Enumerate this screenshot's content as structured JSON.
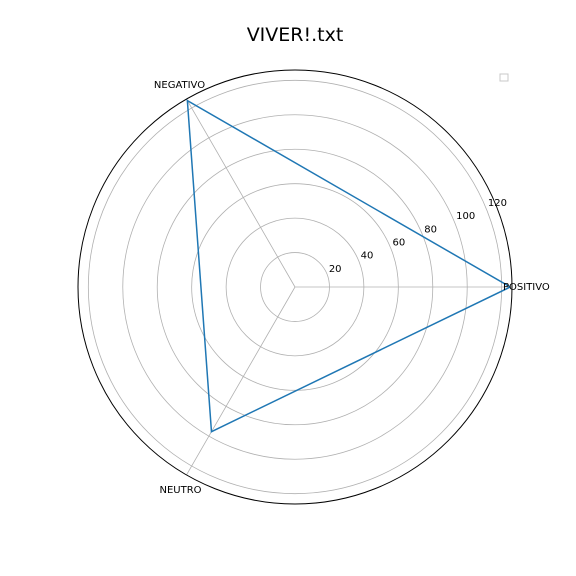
{
  "chart_data": {
    "type": "radar",
    "title": "VIVER!.txt",
    "categories": [
      "POSITIVO",
      "NEGATIVO",
      "NEUTRO"
    ],
    "series": [
      {
        "values": [
          125,
          125,
          97
        ]
      }
    ],
    "radial_ticks": [
      20,
      40,
      60,
      80,
      100,
      120
    ],
    "rlim": [
      0,
      126
    ],
    "grid": true,
    "legend": "top-right",
    "colors": {
      "series": "#1f77b4",
      "grid": "#b0b0b0",
      "frame": "#000000"
    }
  }
}
